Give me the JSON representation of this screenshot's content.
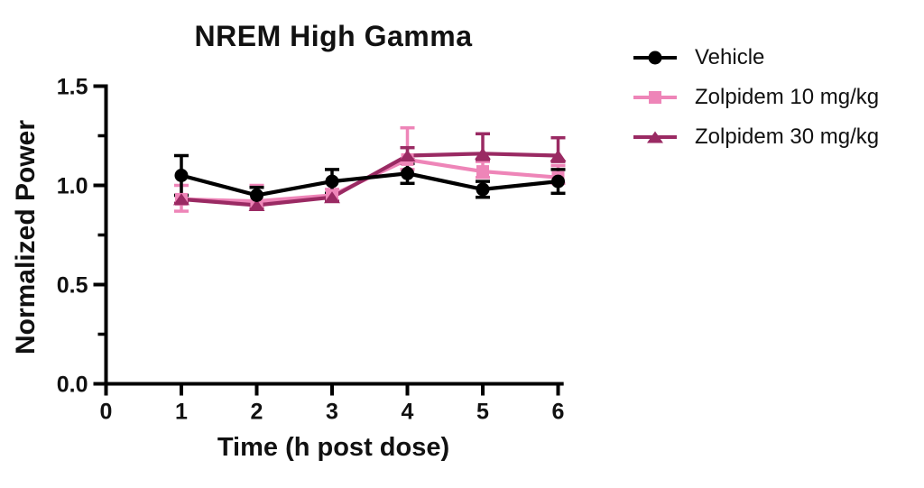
{
  "page": {
    "background": "#ffffff"
  },
  "chart_data": {
    "type": "line",
    "title": "NREM High Gamma",
    "xlabel": "Time (h post dose)",
    "ylabel": "Normalized Power",
    "xlim": [
      0,
      6.05
    ],
    "ylim": [
      0.0,
      1.5
    ],
    "x_ticks": [
      0,
      1,
      2,
      3,
      4,
      5,
      6
    ],
    "x_tick_labels": [
      "0",
      "1",
      "2",
      "3",
      "4",
      "5",
      "6"
    ],
    "y_ticks": [
      0.0,
      0.5,
      1.0,
      1.5
    ],
    "y_tick_labels": [
      "0.0",
      "0.5",
      "1.0",
      "1.5"
    ],
    "y_minor_ticks": [
      0.25,
      0.75,
      1.25
    ],
    "grid": false,
    "legend_position": "right-outside",
    "error_bars": "sem",
    "axis_color": "#000000",
    "x": [
      1,
      2,
      3,
      4,
      5,
      6
    ],
    "series": [
      {
        "name": "Vehicle",
        "color": "#000000",
        "marker": "circle",
        "values": [
          1.05,
          0.95,
          1.02,
          1.06,
          0.98,
          1.02
        ],
        "err_up": [
          0.1,
          0.04,
          0.06,
          0.05,
          0.04,
          0.06
        ],
        "err_down": [
          0.1,
          0.04,
          0.06,
          0.05,
          0.04,
          0.06
        ]
      },
      {
        "name": "Zolpidem 10 mg/kg",
        "color": "#EE85B8",
        "marker": "square",
        "values": [
          0.93,
          0.92,
          0.95,
          1.13,
          1.07,
          1.04
        ],
        "err_up": [
          0.07,
          0.08,
          0.03,
          0.16,
          0.05,
          0.06
        ],
        "err_down": [
          0.06,
          0.03,
          0.03,
          0.05,
          0.03,
          0.03
        ]
      },
      {
        "name": "Zolpidem 30 mg/kg",
        "color": "#9A2A63",
        "marker": "triangle",
        "values": [
          0.93,
          0.9,
          0.94,
          1.15,
          1.16,
          1.15
        ],
        "err_up": [
          0.02,
          0.02,
          0.02,
          0.04,
          0.1,
          0.09
        ],
        "err_down": [
          0.02,
          0.02,
          0.02,
          0.02,
          0.03,
          0.03
        ]
      }
    ]
  }
}
